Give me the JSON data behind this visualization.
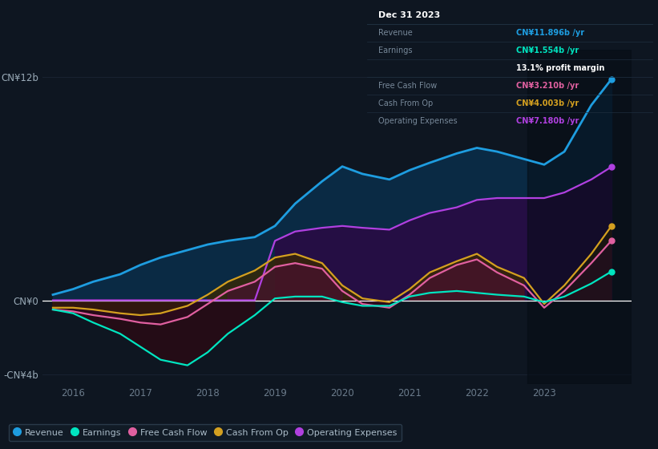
{
  "bg_color": "#0e1621",
  "plot_bg_color": "#0e1621",
  "grid_color": "#1a2535",
  "zero_line_color": "#ffffff",
  "years": [
    2015.7,
    2016.0,
    2016.3,
    2016.7,
    2017.0,
    2017.3,
    2017.7,
    2018.0,
    2018.3,
    2018.7,
    2019.0,
    2019.3,
    2019.7,
    2020.0,
    2020.3,
    2020.7,
    2021.0,
    2021.3,
    2021.7,
    2022.0,
    2022.3,
    2022.7,
    2023.0,
    2023.3,
    2023.7,
    2024.0
  ],
  "revenue": [
    0.3,
    0.6,
    1.0,
    1.4,
    1.9,
    2.3,
    2.7,
    3.0,
    3.2,
    3.4,
    4.0,
    5.2,
    6.4,
    7.2,
    6.8,
    6.5,
    7.0,
    7.4,
    7.9,
    8.2,
    8.0,
    7.6,
    7.3,
    8.0,
    10.5,
    11.9
  ],
  "earnings": [
    -0.5,
    -0.7,
    -1.2,
    -1.8,
    -2.5,
    -3.2,
    -3.5,
    -2.8,
    -1.8,
    -0.8,
    0.1,
    0.2,
    0.2,
    -0.1,
    -0.3,
    -0.3,
    0.2,
    0.4,
    0.5,
    0.4,
    0.3,
    0.2,
    -0.1,
    0.2,
    0.9,
    1.55
  ],
  "free_cash_flow": [
    -0.5,
    -0.6,
    -0.8,
    -1.0,
    -1.2,
    -1.3,
    -0.9,
    -0.2,
    0.5,
    1.0,
    1.8,
    2.0,
    1.7,
    0.5,
    -0.2,
    -0.4,
    0.3,
    1.2,
    1.9,
    2.2,
    1.5,
    0.8,
    -0.4,
    0.5,
    2.0,
    3.21
  ],
  "cash_from_op": [
    -0.4,
    -0.4,
    -0.5,
    -0.7,
    -0.8,
    -0.7,
    -0.3,
    0.3,
    1.0,
    1.6,
    2.3,
    2.5,
    2.0,
    0.8,
    0.1,
    -0.1,
    0.6,
    1.5,
    2.1,
    2.5,
    1.8,
    1.2,
    -0.2,
    0.8,
    2.5,
    4.0
  ],
  "operating_expenses": [
    0.0,
    0.0,
    0.0,
    0.0,
    0.0,
    0.0,
    0.0,
    0.0,
    0.0,
    0.0,
    3.2,
    3.7,
    3.9,
    4.0,
    3.9,
    3.8,
    4.3,
    4.7,
    5.0,
    5.4,
    5.5,
    5.5,
    5.5,
    5.8,
    6.5,
    7.18
  ],
  "revenue_color": "#1e9de0",
  "earnings_color": "#00e5c0",
  "fcf_color": "#e060a0",
  "cashop_color": "#d4a020",
  "opex_color": "#b040e0",
  "revenue_fill": "#0a2a44",
  "opex_fill": "#2a0a44",
  "fcf_fill_pos": "#4a1030",
  "fcf_fill_neg": "#300a20",
  "cashop_fill_pos": "#3a2800",
  "earnings_fill_neg": "#2a0a14",
  "ylim": [
    -4.5,
    13.5
  ],
  "xlim": [
    2015.55,
    2024.3
  ],
  "yticks": [
    -4,
    0,
    12
  ],
  "ytick_labels": [
    "-CN¥4b",
    "CN¥0",
    "CN¥12b"
  ],
  "xticks": [
    2016,
    2017,
    2018,
    2019,
    2020,
    2021,
    2022,
    2023
  ],
  "legend_items": [
    {
      "label": "Revenue",
      "color": "#1e9de0"
    },
    {
      "label": "Earnings",
      "color": "#00e5c0"
    },
    {
      "label": "Free Cash Flow",
      "color": "#e060a0"
    },
    {
      "label": "Cash From Op",
      "color": "#d4a020"
    },
    {
      "label": "Operating Expenses",
      "color": "#b040e0"
    }
  ],
  "tooltip": {
    "date": "Dec 31 2023",
    "rows": [
      {
        "label": "Revenue",
        "value": "CN¥11.896b /yr",
        "color": "#1e9de0"
      },
      {
        "label": "Earnings",
        "value": "CN¥1.554b /yr",
        "color": "#00e5c0"
      },
      {
        "label": "",
        "value": "13.1% profit margin",
        "color": "#ffffff"
      },
      {
        "label": "Free Cash Flow",
        "value": "CN¥3.210b /yr",
        "color": "#e060a0"
      },
      {
        "label": "Cash From Op",
        "value": "CN¥4.003b /yr",
        "color": "#d4a020"
      },
      {
        "label": "Operating Expenses",
        "value": "CN¥7.180b /yr",
        "color": "#b040e0"
      }
    ]
  },
  "right_dots": {
    "revenue": {
      "y": 11.9,
      "color": "#1e9de0"
    },
    "opex": {
      "y": 7.18,
      "color": "#b040e0"
    },
    "fcf": {
      "y": 3.21,
      "color": "#e060a0"
    },
    "cashop": {
      "y": 4.0,
      "color": "#d4a020"
    },
    "earnings": {
      "y": 1.55,
      "color": "#00e5c0"
    }
  }
}
